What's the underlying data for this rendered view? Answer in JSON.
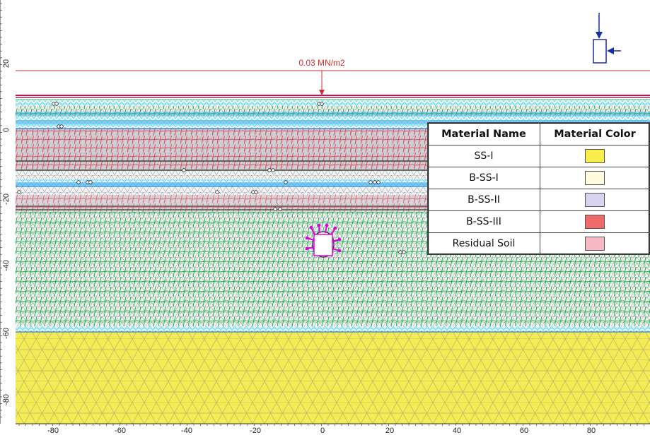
{
  "load": {
    "label": "0.03 MN/m2"
  },
  "axes": {
    "x_ticks": [
      "-80",
      "-60",
      "-40",
      "-20",
      "0",
      "20",
      "40",
      "60",
      "80"
    ],
    "y_ticks": [
      "20",
      "0",
      "-20",
      "-40",
      "-60",
      "-80"
    ]
  },
  "legend": {
    "headers": [
      "Material Name",
      "Material Color"
    ],
    "rows": [
      {
        "name": "SS-I",
        "color": "#f8ee4e"
      },
      {
        "name": "B-SS-I",
        "color": "#fffbe0"
      },
      {
        "name": "B-SS-II",
        "color": "#d8d4f0"
      },
      {
        "name": "B-SS-III",
        "color": "#f06a6a"
      },
      {
        "name": "Residual Soil",
        "color": "#f7b9c4"
      }
    ]
  },
  "colors": {
    "mesh_gray": "#8a8a8a",
    "mesh_green": "#19b84a",
    "mesh_red": "#e14b55",
    "mesh_cyan": "#30c8e0",
    "band_blue": "#3aa6e8",
    "yellow_soil": "#f3ec55",
    "load_line": "#d42d2d",
    "top_surface": "#b01c5a",
    "tunnel_support": "#e000e0",
    "arrow_blue": "#1a2da8"
  }
}
